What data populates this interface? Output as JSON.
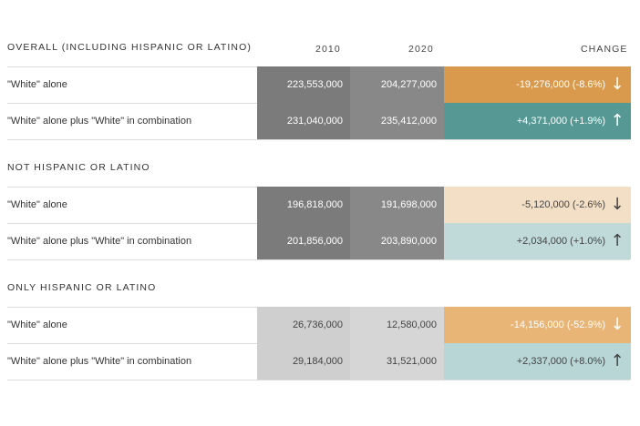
{
  "chart_data": {
    "type": "table",
    "columns": [
      "2010",
      "2020",
      "CHANGE"
    ],
    "sections": [
      {
        "title": "OVERALL (INCLUDING HISPANIC OR LATINO)",
        "rows": [
          {
            "label": "\"White\" alone",
            "v2010": "223,553,000",
            "v2020": "204,277,000",
            "change": "-19,276,000 (-8.6%)",
            "direction": "down"
          },
          {
            "label": "\"White\" alone plus \"White\" in combination",
            "v2010": "231,040,000",
            "v2020": "235,412,000",
            "change": "+4,371,000 (+1.9%)",
            "direction": "up"
          }
        ]
      },
      {
        "title": "NOT HISPANIC OR LATINO",
        "rows": [
          {
            "label": "\"White\" alone",
            "v2010": "196,818,000",
            "v2020": "191,698,000",
            "change": "-5,120,000 (-2.6%)",
            "direction": "down"
          },
          {
            "label": "\"White\" alone plus \"White\" in combination",
            "v2010": "201,856,000",
            "v2020": "203,890,000",
            "change": "+2,034,000 (+1.0%)",
            "direction": "up"
          }
        ]
      },
      {
        "title": "ONLY HISPANIC OR LATINO",
        "rows": [
          {
            "label": "\"White\" alone",
            "v2010": "26,736,000",
            "v2020": "12,580,000",
            "change": "-14,156,000 (-52.9%)",
            "direction": "down"
          },
          {
            "label": "\"White\" alone plus \"White\" in combination",
            "v2010": "29,184,000",
            "v2020": "31,521,000",
            "change": "+2,337,000 (+8.0%)",
            "direction": "up"
          }
        ]
      }
    ]
  },
  "arrows": {
    "up": "↑",
    "down": "↓"
  },
  "colors": {
    "value_dark": "#7b7b7b",
    "value_dark_2020": "#888888",
    "value_light": "#cfcfcf",
    "value_light_2020": "#d6d6d6",
    "text_dark_cells": "#ffffff",
    "text_light_cells": "#444444",
    "down_strong": "#d99a4e",
    "up_strong": "#559894",
    "down_light": "#f3dfc6",
    "up_light": "#c0dad9",
    "down_medium": "#e8b577",
    "up_medium": "#b7d6d5"
  }
}
